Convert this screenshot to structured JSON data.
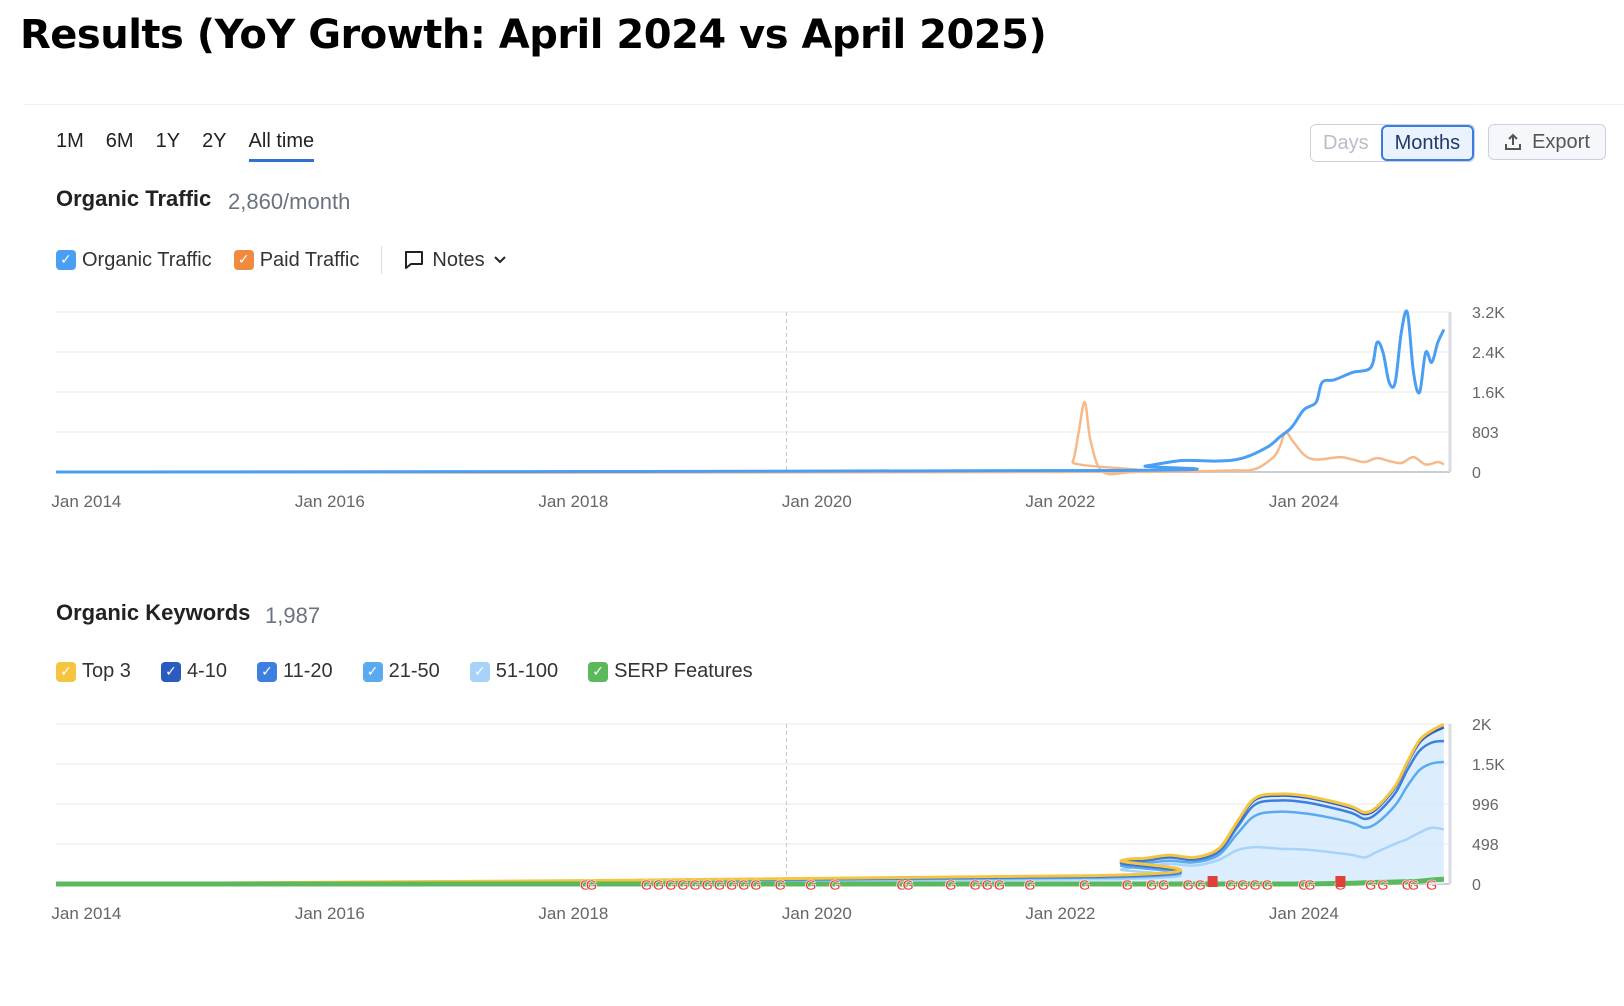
{
  "page": {
    "title": "Results (YoY Growth: April 2024 vs April 2025)"
  },
  "toolbar": {
    "ranges": [
      "1M",
      "6M",
      "1Y",
      "2Y",
      "All time"
    ],
    "active_range": "All time",
    "granularity": [
      {
        "label": "Days",
        "active": false
      },
      {
        "label": "Months",
        "active": true
      }
    ],
    "export_label": "Export",
    "icons": {
      "export": "upload-icon",
      "notes": "comment-icon",
      "chevron": "chevron-down-icon"
    }
  },
  "traffic": {
    "title": "Organic Traffic",
    "value": "2,860/month",
    "legend": [
      {
        "label": "Organic Traffic",
        "color": "#4a9ff5"
      },
      {
        "label": "Paid Traffic",
        "color": "#f08a3e"
      }
    ],
    "notes_label": "Notes"
  },
  "keywords": {
    "title": "Organic Keywords",
    "value": "1,987",
    "legend": [
      {
        "label": "Top 3",
        "color": "#f5c542"
      },
      {
        "label": "4-10",
        "color": "#2a5cbf"
      },
      {
        "label": "11-20",
        "color": "#3d7fe0"
      },
      {
        "label": "21-50",
        "color": "#5aaaf0"
      },
      {
        "label": "51-100",
        "color": "#a7d3fa"
      },
      {
        "label": "SERP Features",
        "color": "#5cb85c"
      }
    ]
  },
  "chart_data": [
    {
      "type": "line",
      "x_tick_labels": [
        "Jan 2014",
        "Jan 2016",
        "Jan 2018",
        "Jan 2020",
        "Jan 2022",
        "Jan 2024"
      ],
      "x_ticks": [
        2014,
        2016,
        2018,
        2020,
        2022,
        2024
      ],
      "xlim": [
        2013.75,
        2025.2
      ],
      "y_tick_labels": [
        "0",
        "803",
        "1.6K",
        "2.4K",
        "3.2K"
      ],
      "y_ticks": [
        0,
        803,
        1606,
        2409,
        3212
      ],
      "ylim": [
        0,
        3212
      ],
      "divider_x": 2019.75,
      "grid": true,
      "series": [
        {
          "name": "Organic Traffic",
          "color": "#4a9ff5",
          "x": [
            2013.75,
            2022.4,
            2022.7,
            2023.0,
            2023.3,
            2023.5,
            2023.7,
            2023.8,
            2023.9,
            2024.0,
            2024.1,
            2024.15,
            2024.25,
            2024.4,
            2024.55,
            2024.6,
            2024.65,
            2024.7,
            2024.75,
            2024.8,
            2024.85,
            2024.9,
            2024.95,
            2025.0,
            2025.05,
            2025.1,
            2025.15
          ],
          "y": [
            0,
            30,
            120,
            230,
            220,
            280,
            500,
            700,
            900,
            1250,
            1400,
            1800,
            1850,
            2000,
            2100,
            2600,
            2400,
            1800,
            1800,
            2800,
            3200,
            2000,
            1600,
            2400,
            2200,
            2600,
            2860
          ]
        },
        {
          "name": "Paid Traffic",
          "color": "#f6b98a",
          "x": [
            2013.75,
            2022.0,
            2022.1,
            2022.15,
            2022.2,
            2022.25,
            2022.35,
            2022.6,
            2023.0,
            2023.4,
            2023.6,
            2023.75,
            2023.8,
            2023.85,
            2023.9,
            2024.0,
            2024.1,
            2024.3,
            2024.4,
            2024.5,
            2024.6,
            2024.7,
            2024.8,
            2024.9,
            2025.0,
            2025.1,
            2025.15
          ],
          "y": [
            0,
            0,
            200,
            800,
            1400,
            600,
            0,
            0,
            10,
            30,
            60,
            300,
            500,
            800,
            650,
            350,
            250,
            300,
            250,
            200,
            280,
            220,
            180,
            300,
            150,
            200,
            150
          ]
        }
      ]
    },
    {
      "type": "area",
      "x_tick_labels": [
        "Jan 2014",
        "Jan 2016",
        "Jan 2018",
        "Jan 2020",
        "Jan 2022",
        "Jan 2024"
      ],
      "x_ticks": [
        2014,
        2016,
        2018,
        2020,
        2022,
        2024
      ],
      "xlim": [
        2013.75,
        2025.2
      ],
      "y_tick_labels": [
        "0",
        "498",
        "996",
        "1.5K",
        "2K"
      ],
      "y_ticks": [
        0,
        498,
        996,
        1494,
        1992
      ],
      "ylim": [
        0,
        1992
      ],
      "divider_x": 2019.75,
      "grid": true,
      "x": [
        2013.75,
        2022.3,
        2022.5,
        2022.7,
        2022.9,
        2023.1,
        2023.3,
        2023.45,
        2023.6,
        2023.8,
        2024.0,
        2024.2,
        2024.4,
        2024.5,
        2024.6,
        2024.75,
        2024.85,
        2024.95,
        2025.05,
        2025.15
      ],
      "series": [
        {
          "name": "51-100",
          "color": "#a7d3fa",
          "y": [
            0,
            60,
            180,
            220,
            250,
            230,
            300,
            420,
            460,
            440,
            430,
            400,
            360,
            330,
            400,
            500,
            560,
            640,
            700,
            680
          ]
        },
        {
          "name": "21-50",
          "color": "#5aaaf0",
          "y": [
            0,
            80,
            230,
            260,
            290,
            270,
            360,
            620,
            850,
            900,
            880,
            830,
            760,
            700,
            760,
            980,
            1220,
            1420,
            1500,
            1520
          ]
        },
        {
          "name": "11-20",
          "color": "#3d7fe0",
          "y": [
            0,
            90,
            260,
            290,
            330,
            300,
            400,
            700,
            990,
            1040,
            1020,
            960,
            880,
            810,
            880,
            1130,
            1420,
            1660,
            1760,
            1780
          ]
        },
        {
          "name": "4-10",
          "color": "#2a5cbf",
          "y": [
            0,
            100,
            280,
            310,
            350,
            320,
            430,
            750,
            1050,
            1100,
            1080,
            1020,
            940,
            870,
            940,
            1200,
            1500,
            1760,
            1880,
            1950
          ]
        },
        {
          "name": "Top 3",
          "color": "#f5c542",
          "y": [
            0,
            105,
            290,
            320,
            360,
            330,
            440,
            770,
            1070,
            1120,
            1100,
            1040,
            960,
            890,
            960,
            1220,
            1520,
            1790,
            1910,
            1987
          ]
        },
        {
          "name": "SERP Features",
          "color": "#5cb85c",
          "y": [
            0,
            0,
            0,
            0,
            0,
            0,
            0,
            0,
            0,
            0,
            0,
            5,
            10,
            15,
            20,
            25,
            30,
            35,
            50,
            60
          ]
        }
      ],
      "serp_markers_x": [
        2018.1,
        2018.15,
        2018.6,
        2018.7,
        2018.8,
        2018.9,
        2019.0,
        2019.1,
        2019.2,
        2019.3,
        2019.4,
        2019.5,
        2019.7,
        2019.95,
        2020.15,
        2020.7,
        2020.75,
        2021.1,
        2021.3,
        2021.4,
        2021.5,
        2021.75,
        2022.2,
        2022.55,
        2022.75,
        2022.85,
        2023.05,
        2023.15,
        2023.4,
        2023.5,
        2023.6,
        2023.7,
        2024.0,
        2024.05,
        2024.3,
        2024.55,
        2024.65,
        2024.85,
        2024.9,
        2025.05
      ],
      "flag_markers_x": [
        2023.25,
        2024.3
      ]
    }
  ]
}
